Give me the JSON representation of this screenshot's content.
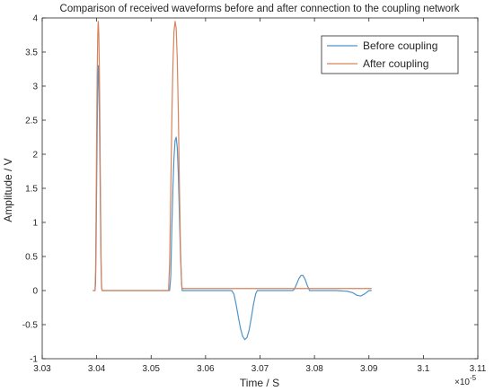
{
  "chart_data": {
    "type": "line",
    "title": "Comparison of received waveforms before and after connection to the coupling network",
    "xlabel": "Time / S",
    "ylabel": "Amplitude / V",
    "x_exponent": "×10",
    "x_exponent_power": "-5",
    "xlim": [
      3.03,
      3.11
    ],
    "ylim": [
      -1,
      4
    ],
    "xticks": [
      3.03,
      3.04,
      3.05,
      3.06,
      3.07,
      3.08,
      3.09,
      3.1,
      3.11
    ],
    "xtick_labels": [
      "3.03",
      "3.04",
      "3.05",
      "3.06",
      "3.07",
      "3.08",
      "3.09",
      "3.1",
      "3.11"
    ],
    "yticks": [
      -1,
      -0.5,
      0,
      0.5,
      1,
      1.5,
      2,
      2.5,
      3,
      3.5,
      4
    ],
    "ytick_labels": [
      "-1",
      "-0.5",
      "0",
      "0.5",
      "1",
      "1.5",
      "2",
      "2.5",
      "3",
      "3.5",
      "4"
    ],
    "grid": false,
    "legend_position": "top-right",
    "series": [
      {
        "name": "Before coupling",
        "color": "#4f94c9",
        "points": [
          [
            3.0393,
            0.0
          ],
          [
            3.0397,
            0.0
          ],
          [
            3.0398,
            0.1
          ],
          [
            3.0399,
            0.7
          ],
          [
            3.04,
            1.6
          ],
          [
            3.0401,
            2.4
          ],
          [
            3.0402,
            3.0
          ],
          [
            3.04025,
            3.2
          ],
          [
            3.0403,
            3.3
          ],
          [
            3.0404,
            3.1
          ],
          [
            3.0405,
            2.6
          ],
          [
            3.0406,
            1.9
          ],
          [
            3.0407,
            1.1
          ],
          [
            3.0408,
            0.4
          ],
          [
            3.0409,
            0.05
          ],
          [
            3.041,
            0.0
          ],
          [
            3.0413,
            0.0
          ],
          [
            3.045,
            0.0
          ],
          [
            3.051,
            0.0
          ],
          [
            3.0534,
            0.0
          ],
          [
            3.0536,
            0.2
          ],
          [
            3.0538,
            0.9
          ],
          [
            3.054,
            1.5
          ],
          [
            3.0542,
            1.95
          ],
          [
            3.0544,
            2.2
          ],
          [
            3.0546,
            2.25
          ],
          [
            3.0548,
            2.1
          ],
          [
            3.055,
            1.7
          ],
          [
            3.0552,
            1.1
          ],
          [
            3.0554,
            0.5
          ],
          [
            3.0556,
            0.1
          ],
          [
            3.0557,
            0.0
          ],
          [
            3.06,
            0.0
          ],
          [
            3.0648,
            0.0
          ],
          [
            3.0652,
            -0.05
          ],
          [
            3.0656,
            -0.2
          ],
          [
            3.066,
            -0.38
          ],
          [
            3.0664,
            -0.55
          ],
          [
            3.0668,
            -0.67
          ],
          [
            3.0672,
            -0.72
          ],
          [
            3.0676,
            -0.69
          ],
          [
            3.068,
            -0.58
          ],
          [
            3.0684,
            -0.4
          ],
          [
            3.0688,
            -0.2
          ],
          [
            3.0692,
            -0.05
          ],
          [
            3.0695,
            0.0
          ],
          [
            3.07,
            0.0
          ],
          [
            3.076,
            0.0
          ],
          [
            3.0763,
            0.02
          ],
          [
            3.0767,
            0.09
          ],
          [
            3.0771,
            0.17
          ],
          [
            3.0775,
            0.22
          ],
          [
            3.0779,
            0.22
          ],
          [
            3.0783,
            0.16
          ],
          [
            3.0787,
            0.07
          ],
          [
            3.0791,
            0.0
          ],
          [
            3.08,
            0.0
          ],
          [
            3.084,
            0.0
          ],
          [
            3.086,
            -0.01
          ],
          [
            3.087,
            -0.03
          ],
          [
            3.0878,
            -0.07
          ],
          [
            3.0885,
            -0.08
          ],
          [
            3.0892,
            -0.05
          ],
          [
            3.09,
            0.0
          ],
          [
            3.0905,
            0.0
          ]
        ]
      },
      {
        "name": "After coupling",
        "color": "#d9825b",
        "points": [
          [
            3.0393,
            0.0
          ],
          [
            3.0397,
            0.0
          ],
          [
            3.0398,
            0.3
          ],
          [
            3.0399,
            1.2
          ],
          [
            3.04,
            2.3
          ],
          [
            3.0401,
            3.2
          ],
          [
            3.0402,
            3.75
          ],
          [
            3.04025,
            3.9
          ],
          [
            3.0403,
            3.95
          ],
          [
            3.0404,
            3.75
          ],
          [
            3.0405,
            3.2
          ],
          [
            3.0406,
            2.4
          ],
          [
            3.0407,
            1.4
          ],
          [
            3.0408,
            0.5
          ],
          [
            3.0409,
            0.05
          ],
          [
            3.041,
            0.0
          ],
          [
            3.0413,
            0.0
          ],
          [
            3.045,
            0.0
          ],
          [
            3.051,
            0.0
          ],
          [
            3.0532,
            0.0
          ],
          [
            3.0534,
            0.4
          ],
          [
            3.0536,
            1.4
          ],
          [
            3.0538,
            2.5
          ],
          [
            3.054,
            3.3
          ],
          [
            3.0542,
            3.8
          ],
          [
            3.0544,
            3.95
          ],
          [
            3.0546,
            3.85
          ],
          [
            3.0548,
            3.4
          ],
          [
            3.055,
            2.6
          ],
          [
            3.0552,
            1.5
          ],
          [
            3.0554,
            0.6
          ],
          [
            3.0556,
            0.1
          ],
          [
            3.0557,
            0.03
          ],
          [
            3.06,
            0.03
          ],
          [
            3.065,
            0.03
          ],
          [
            3.07,
            0.03
          ],
          [
            3.075,
            0.03
          ],
          [
            3.08,
            0.03
          ],
          [
            3.085,
            0.03
          ],
          [
            3.0905,
            0.03
          ]
        ]
      }
    ]
  }
}
